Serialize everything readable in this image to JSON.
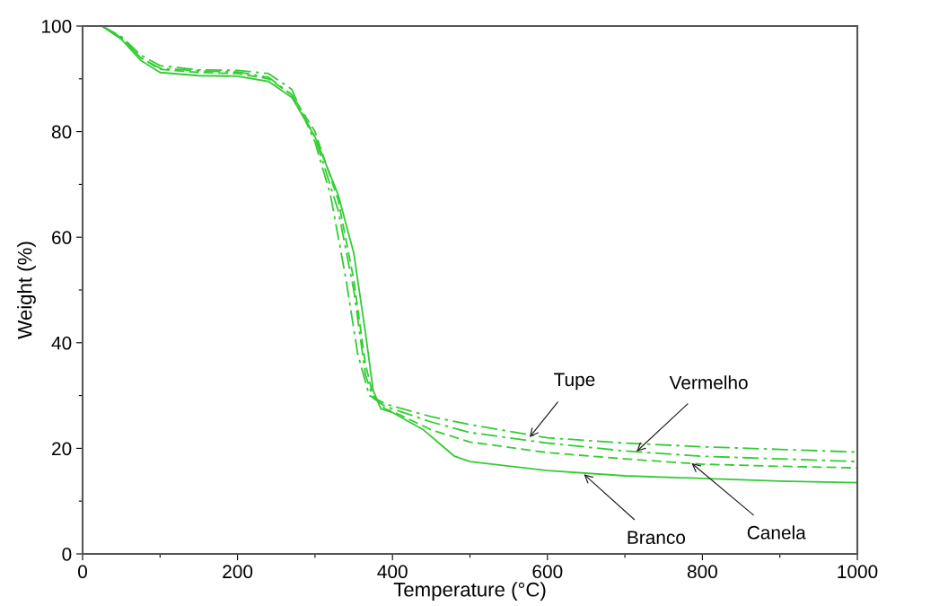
{
  "chart_data": {
    "type": "line",
    "xlabel": "Temperature (°C)",
    "ylabel": "Weight (%)",
    "xlim": [
      0,
      1000
    ],
    "ylim": [
      0,
      100
    ],
    "xticks": [
      0,
      {
        "value": 100,
        "label": null
      },
      200,
      {
        "value": 300,
        "label": null
      },
      400,
      {
        "value": 500,
        "label": null
      },
      600,
      {
        "value": 700,
        "label": null
      },
      800,
      {
        "value": 900,
        "label": null
      },
      1000
    ],
    "yticks": [
      0,
      {
        "value": 10,
        "label": null
      },
      20,
      {
        "value": 30,
        "label": null
      },
      40,
      {
        "value": 50,
        "label": null
      },
      60,
      {
        "value": 70,
        "label": null
      },
      80,
      {
        "value": 90,
        "label": null
      },
      100
    ],
    "grid": false,
    "series": [
      {
        "color": "#33cc33",
        "line_style": "dashdot",
        "x": [
          25,
          50,
          75,
          100,
          150,
          200,
          240,
          270,
          300,
          320,
          340,
          355,
          370,
          390,
          400,
          450,
          500,
          600,
          700,
          800,
          900,
          1000
        ],
        "values": [
          100,
          98,
          94.5,
          92.5,
          91.7,
          91.6,
          91,
          88,
          78,
          68,
          52,
          38,
          30,
          28.5,
          28,
          26,
          24.5,
          22,
          21,
          20.3,
          19.8,
          19.3
        ]
      },
      {
        "color": "#33cc33",
        "line_style": "dashdot",
        "x": [
          25,
          50,
          75,
          100,
          150,
          200,
          240,
          270,
          300,
          330,
          350,
          365,
          375,
          390,
          400,
          450,
          500,
          600,
          700,
          800,
          900,
          1000
        ],
        "values": [
          100,
          97.8,
          94,
          92,
          91.5,
          91.3,
          90.3,
          87,
          79,
          65,
          50,
          34,
          29.5,
          28,
          27.5,
          25,
          23,
          21,
          19.5,
          18.5,
          18,
          17.5
        ]
      },
      {
        "color": "#33cc33",
        "line_style": "dashed",
        "x": [
          25,
          50,
          75,
          100,
          150,
          200,
          240,
          270,
          300,
          330,
          350,
          365,
          375,
          390,
          400,
          450,
          500,
          600,
          700,
          800,
          900,
          1000
        ],
        "values": [
          100,
          97.8,
          94,
          91.8,
          91.2,
          91,
          90,
          87,
          80,
          67,
          52,
          36,
          30,
          27.5,
          27,
          23.5,
          21.2,
          19.2,
          18,
          17,
          16.6,
          16.3
        ]
      },
      {
        "color": "#33cc33",
        "line_style": "solid",
        "x": [
          25,
          50,
          75,
          100,
          150,
          200,
          240,
          270,
          300,
          330,
          350,
          365,
          375,
          385,
          400,
          440,
          460,
          480,
          500,
          600,
          700,
          800,
          900,
          1000
        ],
        "values": [
          100,
          97.5,
          93.5,
          91.2,
          90.6,
          90.5,
          89.5,
          86.5,
          79,
          68,
          57,
          42,
          31,
          27.5,
          26.8,
          23.5,
          21,
          18.5,
          17.5,
          15.8,
          14.8,
          14.3,
          13.8,
          13.5
        ]
      }
    ],
    "annotations": [
      {
        "text": "Tupe",
        "x": 577,
        "y": 22.1
      },
      {
        "text": "Vermelho",
        "x": 715,
        "y": 19.4
      },
      {
        "text": "Canela",
        "x": 786,
        "y": 17.2
      },
      {
        "text": "Branco",
        "x": 647,
        "y": 15.1
      }
    ]
  }
}
